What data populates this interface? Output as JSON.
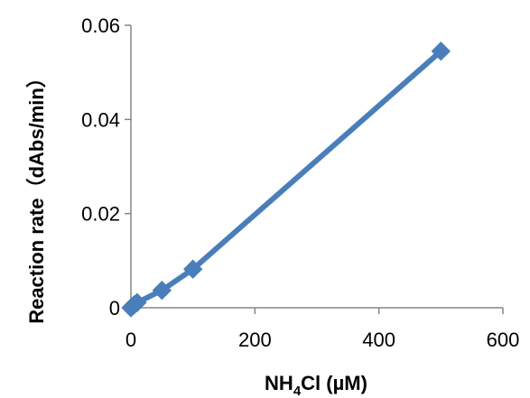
{
  "chart_data": {
    "type": "line",
    "title": "",
    "xlabel": "NH4Cl (µM)",
    "xlabel_parts": {
      "pre": "NH",
      "sub": "4",
      "post": "Cl (µM)"
    },
    "ylabel": "Reaction rate（dAbs/min）",
    "xlim": [
      0,
      600
    ],
    "ylim": [
      0,
      0.06
    ],
    "x_ticks": [
      {
        "value": 0,
        "label": "0"
      },
      {
        "value": 200,
        "label": "200"
      },
      {
        "value": 400,
        "label": "400"
      },
      {
        "value": 600,
        "label": "600"
      }
    ],
    "y_ticks": [
      {
        "value": 0,
        "label": "0"
      },
      {
        "value": 0.02,
        "label": "0.02"
      },
      {
        "value": 0.04,
        "label": "0.04"
      },
      {
        "value": 0.06,
        "label": "0.06"
      }
    ],
    "grid": false,
    "legend": "none",
    "series": [
      {
        "color": "#4a7ebb",
        "marker": "diamond",
        "points": [
          {
            "x": 0,
            "y": 0
          },
          {
            "x": 5,
            "y": 0.0006
          },
          {
            "x": 10,
            "y": 0.0011
          },
          {
            "x": 50,
            "y": 0.0037
          },
          {
            "x": 100,
            "y": 0.0082
          },
          {
            "x": 500,
            "y": 0.0545
          }
        ]
      }
    ]
  }
}
